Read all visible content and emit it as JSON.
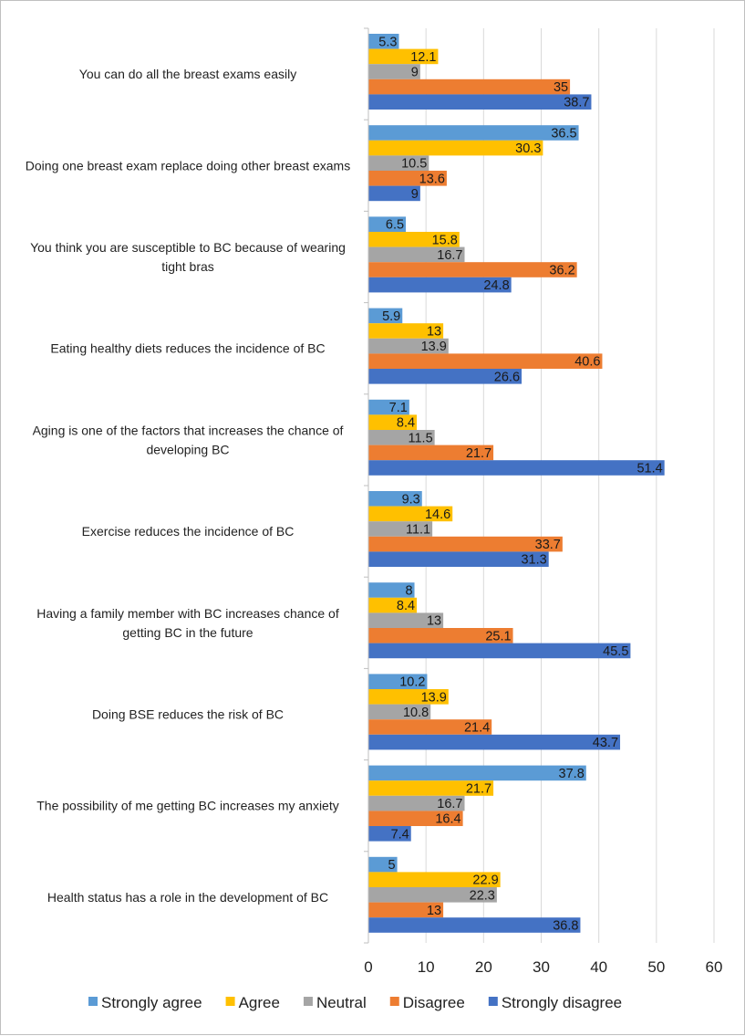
{
  "chart_data": {
    "type": "bar",
    "orientation": "horizontal",
    "categories": [
      "You can do all the breast exams easily",
      "Doing one breast exam replace doing other breast exams",
      "You think you are susceptible to BC because of wearing tight bras",
      "Eating healthy diets reduces the incidence of BC",
      "Aging is one of the factors that increases the chance of developing BC",
      "Exercise reduces the incidence of BC",
      "Having a family member with BC increases chance of getting BC in the future",
      "Doing BSE reduces the risk of BC",
      "The possibility of me getting BC increases my anxiety",
      "Health status has a role in the development of  BC"
    ],
    "series": [
      {
        "name": "Strongly agree",
        "color": "#5B9BD5",
        "values": [
          5.3,
          36.5,
          6.5,
          5.9,
          7.1,
          9.3,
          8,
          10.2,
          37.8,
          5
        ]
      },
      {
        "name": "Agree",
        "color": "#FFC000",
        "values": [
          12.1,
          30.3,
          15.8,
          13,
          8.4,
          14.6,
          8.4,
          13.9,
          21.7,
          22.9
        ]
      },
      {
        "name": "Neutral",
        "color": "#A5A5A5",
        "values": [
          9,
          10.5,
          16.7,
          13.9,
          11.5,
          11.1,
          13,
          10.8,
          16.7,
          22.3
        ]
      },
      {
        "name": "Disagree",
        "color": "#ED7D31",
        "values": [
          35,
          13.6,
          36.2,
          40.6,
          21.7,
          33.7,
          25.1,
          21.4,
          16.4,
          13
        ]
      },
      {
        "name": "Strongly disagree",
        "color": "#4472C4",
        "values": [
          38.7,
          9,
          24.8,
          26.6,
          51.4,
          31.3,
          45.5,
          43.7,
          7.4,
          36.8
        ]
      }
    ],
    "xlim": [
      0,
      60
    ],
    "xticks": [
      0,
      10,
      20,
      30,
      40,
      50,
      60
    ],
    "grid": "vertical",
    "legend": "bottom",
    "title": "",
    "xlabel": "",
    "ylabel": ""
  }
}
